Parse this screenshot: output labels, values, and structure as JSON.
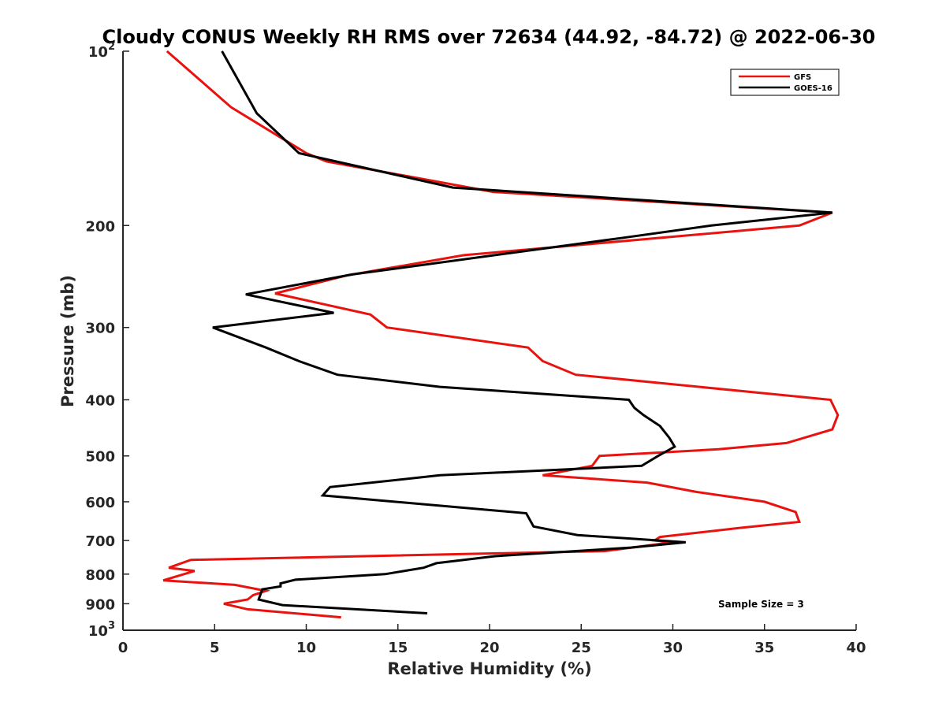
{
  "chart_data": {
    "type": "line",
    "title": "Cloudy CONUS Weekly RH RMS over 72634 (44.92, -84.72) @ 2022-06-30",
    "xlabel": "Relative Humidity (%)",
    "ylabel": "Pressure (mb)",
    "xlim": [
      0,
      40
    ],
    "ylim": [
      100,
      1000
    ],
    "y_scale": "log",
    "y_reversed": true,
    "grid": false,
    "legend_position": "top-right",
    "x_ticks": [
      "0",
      "5",
      "10",
      "15",
      "20",
      "25",
      "30",
      "35",
      "40"
    ],
    "y_ticks": [
      {
        "value": 100,
        "base": "10",
        "exp": "2"
      },
      {
        "value": 200,
        "label": "200"
      },
      {
        "value": 300,
        "label": "300"
      },
      {
        "value": 400,
        "label": "400"
      },
      {
        "value": 500,
        "label": "500"
      },
      {
        "value": 600,
        "label": "600"
      },
      {
        "value": 700,
        "label": "700"
      },
      {
        "value": 800,
        "label": "800"
      },
      {
        "value": 900,
        "label": "900"
      },
      {
        "value": 1000,
        "base": "10",
        "exp": "3"
      }
    ],
    "series": [
      {
        "name": "GFS",
        "color": "#e8130f",
        "points": [
          [
            2.4,
            100
          ],
          [
            5.9,
            125
          ],
          [
            10.0,
            150
          ],
          [
            11.1,
            155
          ],
          [
            20.2,
            175
          ],
          [
            38.7,
            190
          ],
          [
            36.9,
            200
          ],
          [
            18.6,
            225
          ],
          [
            12.2,
            244
          ],
          [
            8.3,
            262
          ],
          [
            13.5,
            285
          ],
          [
            14.4,
            300
          ],
          [
            22.1,
            325
          ],
          [
            22.9,
            343
          ],
          [
            24.7,
            362
          ],
          [
            38.6,
            400
          ],
          [
            39.0,
            425
          ],
          [
            38.7,
            450
          ],
          [
            36.2,
            475
          ],
          [
            32.5,
            487
          ],
          [
            26.0,
            500
          ],
          [
            25.6,
            520
          ],
          [
            22.9,
            540
          ],
          [
            28.6,
            556
          ],
          [
            31.3,
            577
          ],
          [
            35.0,
            600
          ],
          [
            36.7,
            625
          ],
          [
            36.9,
            650
          ],
          [
            33.8,
            665
          ],
          [
            29.3,
            690
          ],
          [
            29.0,
            700
          ],
          [
            30.0,
            705
          ],
          [
            26.3,
            730
          ],
          [
            3.7,
            756
          ],
          [
            2.5,
            780
          ],
          [
            3.9,
            790
          ],
          [
            2.2,
            820
          ],
          [
            6.1,
            835
          ],
          [
            7.8,
            855
          ],
          [
            7.1,
            870
          ],
          [
            6.8,
            885
          ],
          [
            5.5,
            900
          ],
          [
            6.8,
            920
          ],
          [
            11.9,
            950
          ]
        ]
      },
      {
        "name": "GOES-16",
        "color": "#000000",
        "points": [
          [
            5.4,
            100
          ],
          [
            7.3,
            128
          ],
          [
            9.6,
            150
          ],
          [
            18.0,
            172
          ],
          [
            38.7,
            190
          ],
          [
            32.1,
            200
          ],
          [
            27.3,
            210
          ],
          [
            12.5,
            243
          ],
          [
            6.7,
            263
          ],
          [
            11.5,
            283
          ],
          [
            4.9,
            300
          ],
          [
            7.8,
            325
          ],
          [
            9.6,
            343
          ],
          [
            11.7,
            362
          ],
          [
            17.3,
            380
          ],
          [
            27.6,
            400
          ],
          [
            27.9,
            413
          ],
          [
            28.4,
            425
          ],
          [
            29.3,
            444
          ],
          [
            29.8,
            465
          ],
          [
            30.1,
            482
          ],
          [
            29.2,
            500
          ],
          [
            28.3,
            520
          ],
          [
            17.3,
            540
          ],
          [
            11.3,
            566
          ],
          [
            10.9,
            585
          ],
          [
            22.0,
            628
          ],
          [
            22.4,
            662
          ],
          [
            24.8,
            685
          ],
          [
            30.7,
            705
          ],
          [
            27.7,
            720
          ],
          [
            20.3,
            745
          ],
          [
            17.1,
            766
          ],
          [
            16.4,
            780
          ],
          [
            14.3,
            800
          ],
          [
            9.4,
            818
          ],
          [
            8.6,
            830
          ],
          [
            8.6,
            840
          ],
          [
            7.6,
            850
          ],
          [
            7.4,
            885
          ],
          [
            8.7,
            905
          ],
          [
            16.6,
            935
          ]
        ]
      }
    ],
    "annotations": [
      "Sample Size = 3"
    ]
  }
}
